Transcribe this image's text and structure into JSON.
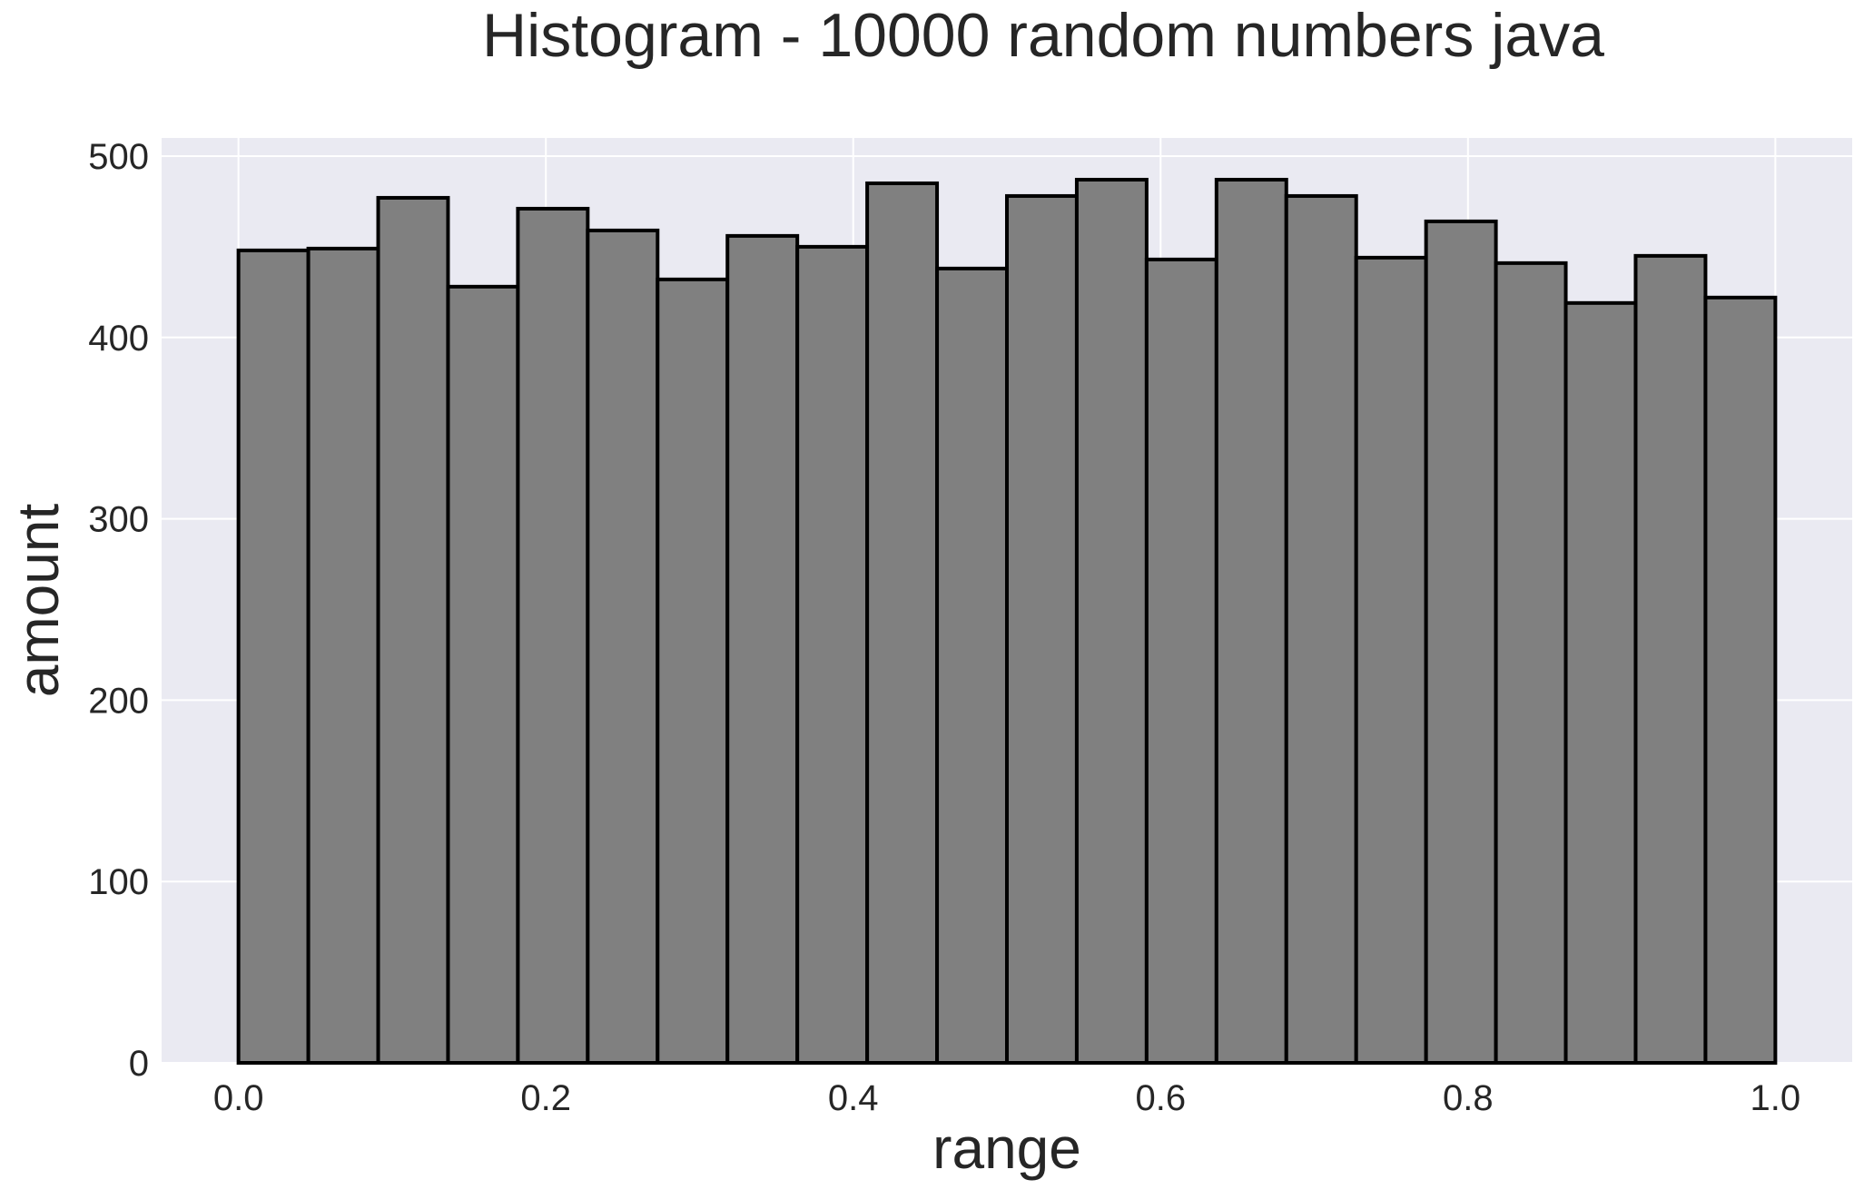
{
  "chart_data": {
    "type": "bar",
    "subtype": "histogram",
    "title": "Histogram - 10000 random numbers java",
    "xlabel": "range",
    "ylabel": "amount",
    "xlim": [
      -0.05,
      1.05
    ],
    "ylim": [
      0,
      510
    ],
    "xticks": [
      "0.0",
      "0.2",
      "0.4",
      "0.6",
      "0.8",
      "1.0"
    ],
    "xtick_values": [
      0.0,
      0.2,
      0.4,
      0.6,
      0.8,
      1.0
    ],
    "yticks": [
      "0",
      "100",
      "200",
      "300",
      "400",
      "500"
    ],
    "ytick_values": [
      0,
      100,
      200,
      300,
      400,
      500
    ],
    "grid": true,
    "bin_range": [
      0.0,
      1.0
    ],
    "bin_count": 22,
    "values": [
      448,
      449,
      477,
      428,
      471,
      459,
      432,
      456,
      450,
      485,
      438,
      478,
      487,
      443,
      487,
      478,
      444,
      464,
      441,
      419,
      445,
      422
    ]
  },
  "colors": {
    "plot_background": "#eaeaf2",
    "grid": "#ffffff",
    "bar_fill": "#808080",
    "bar_edge": "#000000",
    "text": "#262626"
  }
}
